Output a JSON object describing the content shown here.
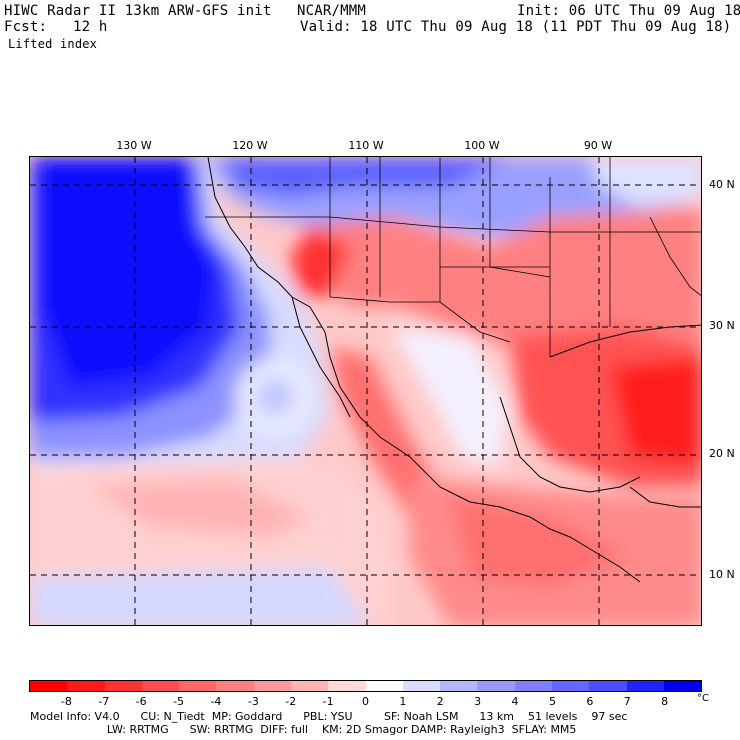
{
  "header": {
    "line1_left": "HIWC Radar II 13km ARW-GFS init",
    "line1_center": "NCAR/MMM",
    "line1_right": "Init: 06 UTC Thu 09 Aug 18",
    "line2_left": "Fcst:   12 h",
    "line2_right": "Valid: 18 UTC Thu 09 Aug 18 (11 PDT Thu 09 Aug 18)",
    "field_name": "Lifted index"
  },
  "map": {
    "lon_labels": [
      "130 W",
      "120 W",
      "110 W",
      "100 W",
      "90 W"
    ],
    "lat_labels": [
      "40 N",
      "30 N",
      "20 N",
      "10 N"
    ]
  },
  "colorbar": {
    "ticks": [
      "-8",
      "-7",
      "-6",
      "-5",
      "-4",
      "-3",
      "-2",
      "-1",
      "0",
      "1",
      "2",
      "3",
      "4",
      "5",
      "6",
      "7",
      "8"
    ],
    "unit": "°C",
    "colors": [
      "#ff0000",
      "#ff1a1a",
      "#ff3333",
      "#ff4d4d",
      "#ff6666",
      "#ff8080",
      "#ff9999",
      "#ffb3b3",
      "#ffd9d9",
      "#ffffff",
      "#d9dcff",
      "#b3b9ff",
      "#9999ff",
      "#8080ff",
      "#6666ff",
      "#4d4dff",
      "#2222ff",
      "#0000ee"
    ]
  },
  "footer": {
    "line1": "Model Info: V4.0      CU: N_Tiedt  MP: Goddard      PBL: YSU         SF: Noah LSM      13 km    51 levels    97 sec",
    "line2": "                      LW: RRTMG      SW: RRTMG  DIFF: full    KM: 2D Smagor DAMP: Rayleigh3  SFLAY: MM5"
  }
}
